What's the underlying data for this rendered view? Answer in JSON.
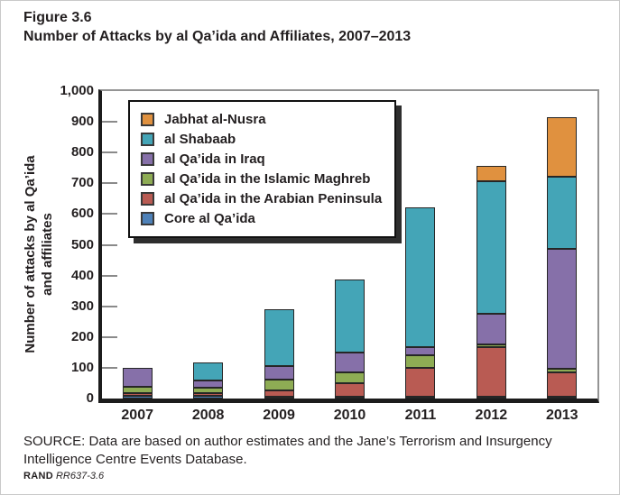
{
  "header": {
    "figure_label": "Figure 3.6",
    "title": "Number of Attacks by al Qa’ida and Affiliates, 2007–2013"
  },
  "chart_data": {
    "type": "bar",
    "stacked": true,
    "title": "Number of Attacks by al Qa’ida and Affiliates, 2007–2013",
    "xlabel": "",
    "ylabel": "Number of attacks by al Qa’ida and affiliates",
    "ylabel_line1": "Number of attacks by al Qa’ida",
    "ylabel_line2": "and affiliates",
    "ylim": [
      0,
      1000
    ],
    "ytick_values": [
      0,
      100,
      200,
      300,
      400,
      500,
      600,
      700,
      800,
      900,
      1000
    ],
    "ytick_labels": [
      "0",
      "100",
      "200",
      "300",
      "400",
      "500",
      "600",
      "700",
      "800",
      "900",
      "1,000"
    ],
    "grid": false,
    "legend_position": "upper-left-inside",
    "categories": [
      "2007",
      "2008",
      "2009",
      "2010",
      "2011",
      "2012",
      "2013"
    ],
    "series": [
      {
        "name": "Core al Qa’ida",
        "color": "#4E81B8",
        "values": [
          10,
          8,
          5,
          5,
          5,
          5,
          5
        ]
      },
      {
        "name": "al Qa’ida in the Arabian Peninsula",
        "color": "#B95B53",
        "values": [
          8,
          9,
          20,
          45,
          95,
          160,
          80
        ]
      },
      {
        "name": "al Qa’ida in the Islamic Maghreb",
        "color": "#8EAC54",
        "values": [
          20,
          18,
          37,
          33,
          40,
          11,
          12
        ]
      },
      {
        "name": "al Qa’ida in Iraq",
        "color": "#8670A9",
        "values": [
          62,
          25,
          44,
          67,
          27,
          100,
          390
        ]
      },
      {
        "name": "al Shabaab",
        "color": "#44A5B7",
        "values": [
          0,
          58,
          184,
          235,
          453,
          429,
          233
        ]
      },
      {
        "name": "Jabhat al-Nusra",
        "color": "#E0913F",
        "values": [
          0,
          0,
          0,
          0,
          0,
          50,
          195
        ]
      }
    ],
    "totals": [
      100,
      118,
      290,
      385,
      620,
      755,
      915
    ]
  },
  "source": {
    "text": "SOURCE: Data are based on author estimates and the Jane’s Terrorism and Insurgency Intelligence Centre Events Database."
  },
  "footer": {
    "brand": "RAND",
    "doc_id": "RR637-3.6"
  }
}
